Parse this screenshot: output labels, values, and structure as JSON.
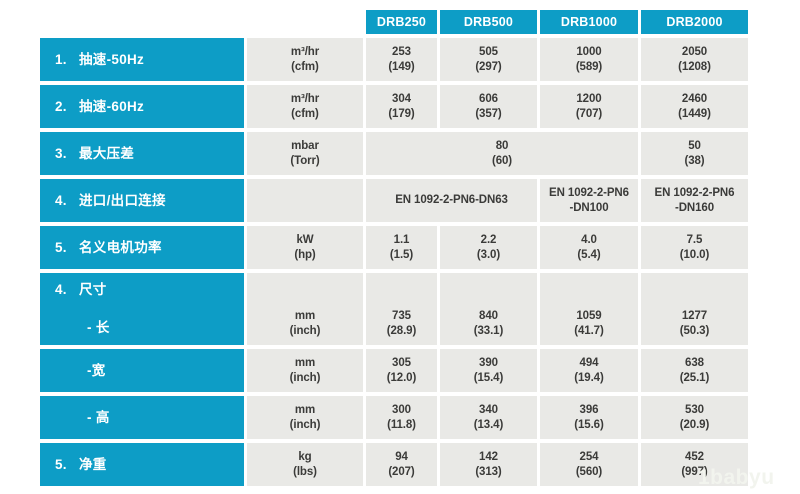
{
  "colors": {
    "teal": "#0d9dc6",
    "cell_bg": "#e9e9e6",
    "text_dark": "#3b3b39",
    "watermark": "#f2f4ee"
  },
  "table": {
    "products": [
      "DRB250",
      "DRB500",
      "DRB1000",
      "DRB2000"
    ],
    "rows": [
      {
        "no": "1.",
        "label": "抽速-50Hz",
        "unit": "m³/hr\n(cfm)",
        "v1": "253\n(149)",
        "v2": "505\n(297)",
        "v3": "1000\n(589)",
        "v4": "2050\n(1208)"
      },
      {
        "no": "2.",
        "label": "抽速-60Hz",
        "unit": "m³/hr\n(cfm)",
        "v1": "304\n(179)",
        "v2": "606\n(357)",
        "v3": "1200\n(707)",
        "v4": "2460\n(1449)"
      },
      {
        "no": "3.",
        "label": "最大压差",
        "unit": "mbar\n(Torr)",
        "v123": "80\n(60)",
        "v4": "50\n(38)"
      },
      {
        "no": "4.",
        "label": "进口/出口连接",
        "unit": "",
        "v12": "EN 1092-2-PN6-DN63",
        "v3": "EN 1092-2-PN6\n-DN100",
        "v4": "EN 1092-2-PN6\n-DN160"
      },
      {
        "no": "5.",
        "label": "名义电机功率",
        "unit": "kW\n(hp)",
        "v1": "1.1\n(1.5)",
        "v2": "2.2\n(3.0)",
        "v3": "4.0\n(5.4)",
        "v4": "7.5\n(10.0)"
      },
      {
        "no": "4.",
        "label": "尺寸",
        "sub": "- 长",
        "unit": "mm\n(inch)",
        "v1": "735\n(28.9)",
        "v2": "840\n(33.1)",
        "v3": "1059\n(41.7)",
        "v4": "1277\n(50.3)"
      },
      {
        "label": "-宽",
        "unit": "mm\n(inch)",
        "v1": "305\n(12.0)",
        "v2": "390\n(15.4)",
        "v3": "494\n(19.4)",
        "v4": "638\n(25.1)"
      },
      {
        "label": "- 高",
        "unit": "mm\n(inch)",
        "v1": "300\n(11.8)",
        "v2": "340\n(13.4)",
        "v3": "396\n(15.6)",
        "v4": "530\n(20.9)"
      },
      {
        "no": "5.",
        "label": "净重",
        "unit": "kg\n(lbs)",
        "v1": "94\n(207)",
        "v2": "142\n(313)",
        "v3": "254\n(560)",
        "v4": "452\n(997)"
      }
    ],
    "watermark": "1babyu"
  }
}
